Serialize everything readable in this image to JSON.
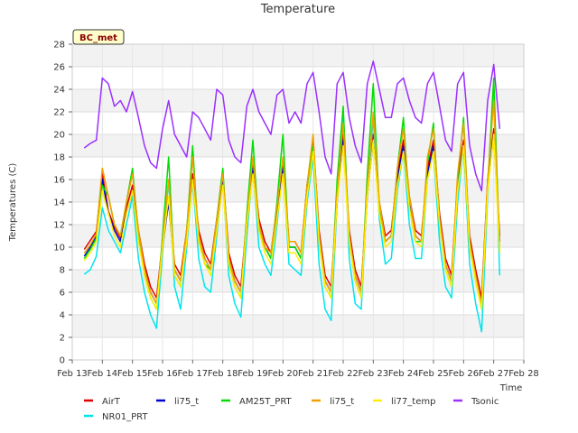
{
  "chart_data": {
    "type": "line",
    "title": "Temperature",
    "xlabel": "Time",
    "ylabel": "Temperatures (C)",
    "badge": "BC_met",
    "ylim": [
      0,
      28
    ],
    "yticks": [
      0,
      2,
      4,
      6,
      8,
      10,
      12,
      14,
      16,
      18,
      20,
      22,
      24,
      26,
      28
    ],
    "xlim": [
      13,
      28
    ],
    "xticks": [
      13,
      14,
      15,
      16,
      17,
      18,
      19,
      20,
      21,
      22,
      23,
      24,
      25,
      26,
      27,
      28
    ],
    "xtick_labels": [
      "Feb 13",
      "Feb 14",
      "Feb 15",
      "Feb 16",
      "Feb 17",
      "Feb 18",
      "Feb 19",
      "Feb 20",
      "Feb 21",
      "Feb 22",
      "Feb 23",
      "Feb 24",
      "Feb 25",
      "Feb 26",
      "Feb 27",
      "Feb 28"
    ],
    "grid": true,
    "legend_position": "bottom",
    "x": [
      13.4,
      13.6,
      13.8,
      14.0,
      14.2,
      14.4,
      14.6,
      14.8,
      15.0,
      15.2,
      15.4,
      15.6,
      15.8,
      16.0,
      16.2,
      16.4,
      16.6,
      16.8,
      17.0,
      17.2,
      17.4,
      17.6,
      17.8,
      18.0,
      18.2,
      18.4,
      18.6,
      18.8,
      19.0,
      19.2,
      19.4,
      19.6,
      19.8,
      20.0,
      20.2,
      20.4,
      20.6,
      20.8,
      21.0,
      21.2,
      21.4,
      21.6,
      21.8,
      22.0,
      22.2,
      22.4,
      22.6,
      22.8,
      23.0,
      23.2,
      23.4,
      23.6,
      23.8,
      24.0,
      24.2,
      24.4,
      24.6,
      24.8,
      25.0,
      25.2,
      25.4,
      25.6,
      25.8,
      26.0,
      26.2,
      26.4,
      26.6,
      26.8,
      27.0,
      27.2
    ],
    "series": [
      {
        "name": "AirT",
        "color": "#dd0000",
        "values": [
          9.8,
          10.6,
          11.4,
          16.5,
          13.2,
          11.8,
          10.8,
          13.5,
          15.5,
          11.5,
          8.5,
          6.5,
          5.5,
          10.5,
          14.5,
          8.5,
          7.5,
          11.5,
          16.5,
          11.5,
          9.5,
          8.5,
          12.5,
          16.5,
          9.5,
          7.5,
          6.5,
          12.5,
          17.5,
          12.5,
          10.5,
          9.5,
          13.5,
          17.5,
          10.5,
          10.5,
          9.5,
          15.5,
          19.5,
          11.5,
          7.5,
          6.5,
          14.5,
          20.0,
          11.5,
          8.0,
          6.5,
          15.0,
          20.0,
          14.0,
          11.0,
          11.5,
          16.5,
          19.5,
          14.5,
          11.5,
          11.0,
          17.0,
          19.5,
          13.0,
          9.0,
          7.5,
          16.0,
          19.5,
          11.0,
          8.0,
          5.5,
          16.0,
          20.5,
          11.0
        ]
      },
      {
        "name": "NR01_PRT",
        "color": "#00e5ee",
        "values": [
          7.6,
          8.0,
          9.2,
          13.5,
          11.5,
          10.5,
          9.5,
          12.0,
          14.5,
          9.0,
          6.0,
          4.0,
          2.8,
          9.5,
          16.0,
          6.5,
          4.5,
          10.0,
          16.0,
          9.0,
          6.5,
          6.0,
          11.0,
          16.0,
          7.5,
          5.0,
          3.8,
          11.0,
          17.0,
          10.0,
          8.5,
          7.5,
          12.0,
          17.0,
          8.5,
          8.0,
          7.5,
          14.0,
          18.0,
          8.5,
          4.5,
          3.5,
          14.0,
          22.0,
          9.0,
          5.0,
          4.5,
          15.0,
          21.5,
          12.5,
          8.5,
          9.0,
          15.0,
          18.5,
          12.0,
          9.0,
          9.0,
          16.0,
          18.5,
          10.5,
          6.5,
          5.5,
          14.0,
          19.0,
          8.5,
          5.0,
          2.5,
          14.5,
          24.0,
          7.5
        ]
      },
      {
        "name": "li75_t",
        "color": "#0000cc",
        "values": [
          9.2,
          10.0,
          11.0,
          16.0,
          13.0,
          11.5,
          10.5,
          13.0,
          15.0,
          11.0,
          8.0,
          6.0,
          5.0,
          10.0,
          14.0,
          8.0,
          7.0,
          11.0,
          16.0,
          11.0,
          9.0,
          8.0,
          12.0,
          16.0,
          9.0,
          7.0,
          6.0,
          12.0,
          17.0,
          12.0,
          10.0,
          9.0,
          13.0,
          17.0,
          10.0,
          10.0,
          9.0,
          15.0,
          19.0,
          11.0,
          7.0,
          6.0,
          14.0,
          19.5,
          11.0,
          7.5,
          6.0,
          14.5,
          19.5,
          13.5,
          10.5,
          11.0,
          16.0,
          19.0,
          14.0,
          11.0,
          10.5,
          16.5,
          19.0,
          12.5,
          8.5,
          7.0,
          15.5,
          19.0,
          10.5,
          7.5,
          5.0,
          15.5,
          20.0,
          10.5
        ]
      },
      {
        "name": "AM25T_PRT",
        "color": "#00dd00",
        "values": [
          9.0,
          9.8,
          10.8,
          15.5,
          14.5,
          12.0,
          11.0,
          14.0,
          17.0,
          11.0,
          7.5,
          5.5,
          4.5,
          11.0,
          18.0,
          7.5,
          6.5,
          11.5,
          19.0,
          10.5,
          8.5,
          8.0,
          12.5,
          17.0,
          8.5,
          6.5,
          5.5,
          13.0,
          19.5,
          11.5,
          10.0,
          9.0,
          14.0,
          20.0,
          10.0,
          10.0,
          9.0,
          15.5,
          19.0,
          10.5,
          6.5,
          5.5,
          16.0,
          22.5,
          10.5,
          7.0,
          5.5,
          16.5,
          24.5,
          13.5,
          10.5,
          11.0,
          17.0,
          21.5,
          13.5,
          10.5,
          10.5,
          17.5,
          21.0,
          12.0,
          8.0,
          6.5,
          16.0,
          21.5,
          10.0,
          7.0,
          4.5,
          15.5,
          25.0,
          9.5
        ]
      },
      {
        "name": "li75_t",
        "color": "#f0a000",
        "values": [
          9.5,
          10.2,
          11.2,
          17.0,
          14.5,
          12.0,
          11.0,
          14.0,
          16.5,
          11.5,
          8.0,
          6.0,
          5.0,
          10.5,
          16.0,
          8.0,
          7.0,
          11.5,
          18.0,
          11.0,
          9.0,
          8.0,
          12.5,
          16.5,
          9.0,
          7.0,
          6.0,
          12.5,
          18.0,
          12.0,
          10.0,
          9.5,
          13.5,
          18.0,
          10.5,
          10.5,
          9.5,
          15.5,
          20.0,
          11.0,
          7.0,
          6.0,
          15.0,
          21.0,
          11.0,
          7.5,
          6.0,
          15.5,
          22.0,
          14.0,
          10.5,
          11.0,
          17.0,
          20.5,
          14.5,
          11.0,
          10.5,
          18.0,
          20.5,
          12.5,
          8.5,
          7.0,
          16.5,
          21.0,
          10.5,
          7.5,
          5.0,
          16.0,
          23.0,
          10.0
        ]
      },
      {
        "name": "li77_temp",
        "color": "#ffee00",
        "values": [
          8.8,
          9.5,
          10.5,
          15.0,
          13.0,
          11.0,
          10.0,
          13.0,
          15.0,
          10.5,
          7.5,
          5.5,
          4.5,
          10.0,
          14.5,
          7.5,
          6.5,
          10.5,
          16.0,
          10.5,
          8.5,
          7.5,
          11.5,
          15.5,
          8.5,
          6.5,
          5.5,
          12.0,
          16.5,
          11.5,
          9.5,
          8.5,
          12.5,
          16.5,
          9.5,
          9.5,
          8.5,
          14.5,
          18.5,
          10.5,
          6.5,
          5.5,
          14.0,
          19.0,
          10.5,
          7.0,
          5.5,
          14.5,
          19.5,
          13.0,
          10.0,
          10.5,
          15.5,
          18.5,
          13.5,
          10.5,
          10.0,
          16.0,
          18.5,
          12.0,
          8.0,
          6.5,
          15.0,
          19.0,
          10.0,
          7.0,
          4.5,
          15.0,
          20.0,
          9.5
        ]
      },
      {
        "name": "Tsonic",
        "color": "#9b30ff",
        "values": [
          18.8,
          19.2,
          19.5,
          25.0,
          24.5,
          22.5,
          23.0,
          22.0,
          23.8,
          21.5,
          19.0,
          17.5,
          17.0,
          20.5,
          23.0,
          20.0,
          19.0,
          18.0,
          22.0,
          21.5,
          20.5,
          19.5,
          24.0,
          23.5,
          19.5,
          18.0,
          17.5,
          22.5,
          24.0,
          22.0,
          21.0,
          20.0,
          23.5,
          24.0,
          21.0,
          22.0,
          21.0,
          24.5,
          25.5,
          22.0,
          18.0,
          16.5,
          24.5,
          25.5,
          21.5,
          19.0,
          17.5,
          24.5,
          26.5,
          24.0,
          21.5,
          21.5,
          24.5,
          25.0,
          23.0,
          21.5,
          21.0,
          24.5,
          25.5,
          22.5,
          19.5,
          18.5,
          24.5,
          25.5,
          19.0,
          16.5,
          15.0,
          23.0,
          26.2,
          20.5
        ]
      }
    ]
  }
}
